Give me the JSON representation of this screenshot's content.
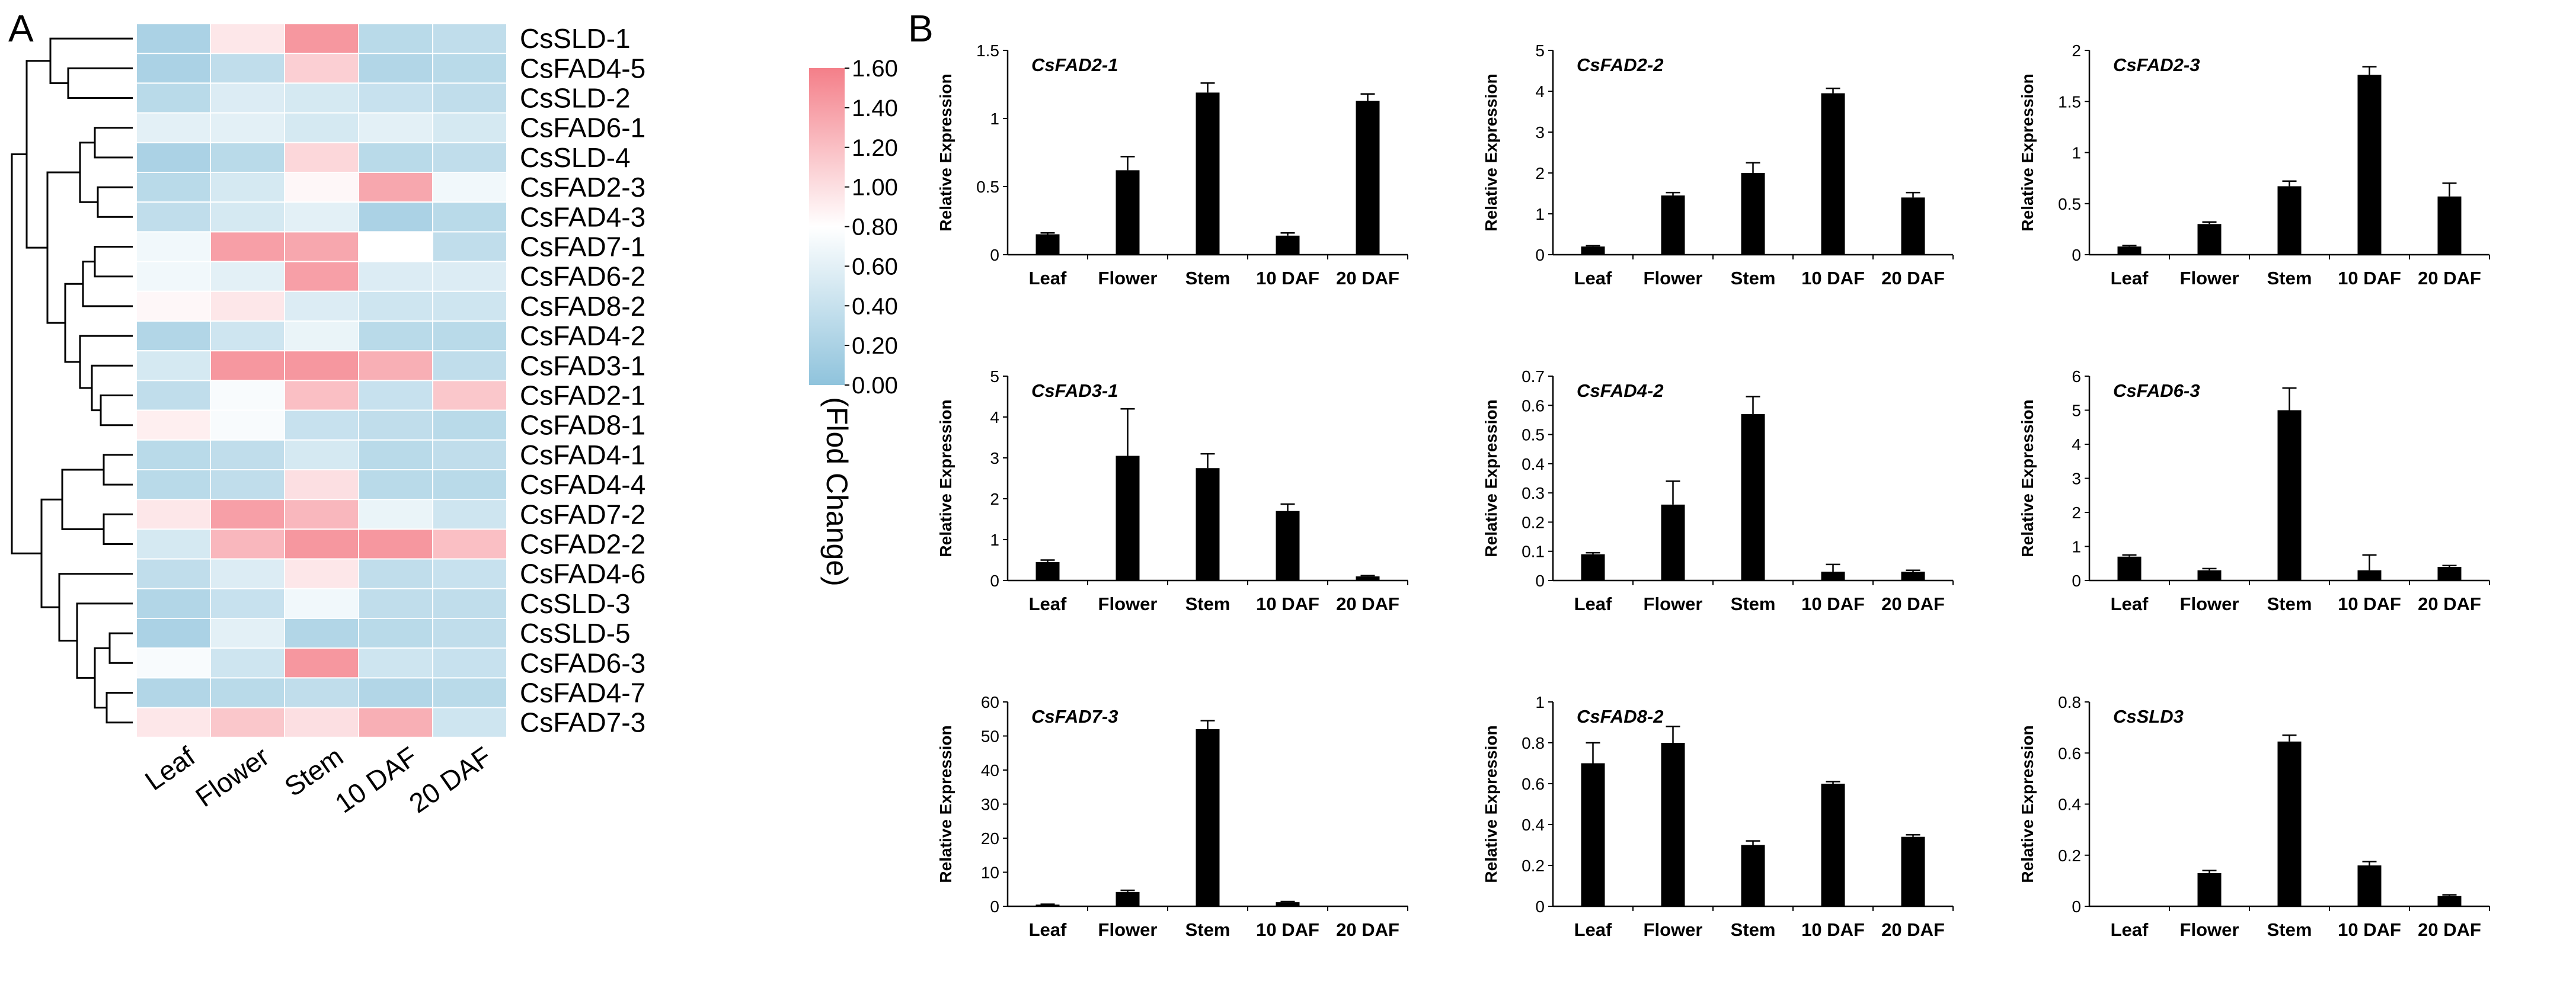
{
  "panels": {
    "a": "A",
    "b": "B"
  },
  "colors": {
    "low": "#8fc3dc",
    "mid": "#ffffff",
    "high": "#f47f89",
    "cell_border": "#ffffff",
    "bar": "#000000"
  },
  "chart_data": [
    {
      "type": "heatmap",
      "panel": "A",
      "columns": [
        "Leaf",
        "Flower",
        "Stem",
        "10 DAF",
        "20 DAF"
      ],
      "rows": [
        "CsSLD-1",
        "CsFAD4-5",
        "CsSLD-2",
        "CsFAD6-1",
        "CsSLD-4",
        "CsFAD2-3",
        "CsFAD4-3",
        "CsFAD7-1",
        "CsFAD6-2",
        "CsFAD8-2",
        "CsFAD4-2",
        "CsFAD3-1",
        "CsFAD2-1",
        "CsFAD8-1",
        "CsFAD4-1",
        "CsFAD4-4",
        "CsFAD7-2",
        "CsFAD2-2",
        "CsFAD4-6",
        "CsSLD-3",
        "CsSLD-5",
        "CsFAD6-3",
        "CsFAD4-7",
        "CsFAD7-3"
      ],
      "values": [
        [
          0.2,
          0.95,
          1.45,
          0.3,
          0.35
        ],
        [
          0.2,
          0.35,
          1.1,
          0.25,
          0.3
        ],
        [
          0.3,
          0.55,
          0.5,
          0.4,
          0.35
        ],
        [
          0.6,
          0.6,
          0.5,
          0.6,
          0.5
        ],
        [
          0.2,
          0.3,
          1.05,
          0.3,
          0.35
        ],
        [
          0.3,
          0.5,
          0.85,
          1.35,
          0.7
        ],
        [
          0.35,
          0.5,
          0.6,
          0.2,
          0.3
        ],
        [
          0.7,
          1.4,
          1.35,
          0.8,
          0.35
        ],
        [
          0.7,
          0.6,
          1.4,
          0.55,
          0.55
        ],
        [
          0.85,
          0.95,
          0.55,
          0.45,
          0.45
        ],
        [
          0.25,
          0.45,
          0.65,
          0.3,
          0.3
        ],
        [
          0.5,
          1.45,
          1.45,
          1.3,
          0.35
        ],
        [
          0.35,
          0.75,
          1.2,
          0.4,
          1.15
        ],
        [
          0.9,
          0.75,
          0.4,
          0.35,
          0.3
        ],
        [
          0.3,
          0.35,
          0.5,
          0.3,
          0.35
        ],
        [
          0.3,
          0.35,
          1.0,
          0.3,
          0.3
        ],
        [
          0.95,
          1.4,
          1.25,
          0.65,
          0.45
        ],
        [
          0.5,
          1.25,
          1.45,
          1.45,
          1.2
        ],
        [
          0.35,
          0.55,
          0.95,
          0.35,
          0.4
        ],
        [
          0.25,
          0.4,
          0.7,
          0.35,
          0.35
        ],
        [
          0.2,
          0.6,
          0.25,
          0.3,
          0.35
        ],
        [
          0.75,
          0.45,
          1.45,
          0.45,
          0.4
        ],
        [
          0.25,
          0.3,
          0.35,
          0.25,
          0.3
        ],
        [
          0.95,
          1.15,
          1.0,
          1.3,
          0.45
        ]
      ],
      "colorbar": {
        "min": 0.0,
        "max": 1.6,
        "ticks": [
          "0.00",
          "0.20",
          "0.40",
          "0.60",
          "0.80",
          "1.00",
          "1.20",
          "1.40",
          "1.60"
        ],
        "title": "(Flod Change)"
      }
    },
    {
      "type": "bar",
      "panel": "B",
      "title": "CsFAD2-1",
      "ylabel": "Relative Expression",
      "categories": [
        "Leaf",
        "Flower",
        "Stem",
        "10 DAF",
        "20 DAF"
      ],
      "values": [
        0.15,
        0.62,
        1.19,
        0.14,
        1.13
      ],
      "errors": [
        0.01,
        0.1,
        0.07,
        0.02,
        0.05
      ],
      "ylim": [
        0,
        1.5
      ],
      "yticks": [
        "0",
        "0.5",
        "1",
        "1.5"
      ]
    },
    {
      "type": "bar",
      "panel": "B",
      "title": "CsFAD2-2",
      "ylabel": "Relative Expression",
      "categories": [
        "Leaf",
        "Flower",
        "Stem",
        "10 DAF",
        "20 DAF"
      ],
      "values": [
        0.2,
        1.45,
        2.0,
        3.95,
        1.4
      ],
      "errors": [
        0.02,
        0.07,
        0.25,
        0.12,
        0.12
      ],
      "ylim": [
        0,
        5
      ],
      "yticks": [
        "0",
        "1",
        "2",
        "3",
        "4",
        "5"
      ]
    },
    {
      "type": "bar",
      "panel": "B",
      "title": "CsFAD2-3",
      "ylabel": "Relative Expression",
      "categories": [
        "Leaf",
        "Flower",
        "Stem",
        "10 DAF",
        "20 DAF"
      ],
      "values": [
        0.08,
        0.3,
        0.67,
        1.76,
        0.57
      ],
      "errors": [
        0.01,
        0.02,
        0.05,
        0.08,
        0.13
      ],
      "ylim": [
        0,
        2
      ],
      "yticks": [
        "0",
        "0.5",
        "1",
        "1.5",
        "2"
      ]
    },
    {
      "type": "bar",
      "panel": "B",
      "title": "CsFAD3-1",
      "ylabel": "Relative Expression",
      "categories": [
        "Leaf",
        "Flower",
        "Stem",
        "10 DAF",
        "20 DAF"
      ],
      "values": [
        0.45,
        3.05,
        2.75,
        1.7,
        0.1
      ],
      "errors": [
        0.05,
        1.15,
        0.35,
        0.17,
        0.02
      ],
      "ylim": [
        0,
        5
      ],
      "yticks": [
        "0",
        "1",
        "2",
        "3",
        "4",
        "5"
      ]
    },
    {
      "type": "bar",
      "panel": "B",
      "title": "CsFAD4-2",
      "ylabel": "Relative Expression",
      "categories": [
        "Leaf",
        "Flower",
        "Stem",
        "10 DAF",
        "20 DAF"
      ],
      "values": [
        0.09,
        0.26,
        0.57,
        0.03,
        0.03
      ],
      "errors": [
        0.005,
        0.08,
        0.06,
        0.025,
        0.005
      ],
      "ylim": [
        0,
        0.7
      ],
      "yticks": [
        "0",
        "0.1",
        "0.2",
        "0.3",
        "0.4",
        "0.5",
        "0.6",
        "0.7"
      ]
    },
    {
      "type": "bar",
      "panel": "B",
      "title": "CsFAD6-3",
      "ylabel": "Relative Expression",
      "categories": [
        "Leaf",
        "Flower",
        "Stem",
        "10 DAF",
        "20 DAF"
      ],
      "values": [
        0.7,
        0.3,
        5.0,
        0.3,
        0.4
      ],
      "errors": [
        0.05,
        0.05,
        0.65,
        0.45,
        0.04
      ],
      "ylim": [
        0,
        6
      ],
      "yticks": [
        "0",
        "1",
        "2",
        "3",
        "4",
        "5",
        "6"
      ]
    },
    {
      "type": "bar",
      "panel": "B",
      "title": "CsFAD7-3",
      "ylabel": "Relative Expression",
      "categories": [
        "Leaf",
        "Flower",
        "Stem",
        "10 DAF",
        "20 DAF"
      ],
      "values": [
        0.5,
        4.2,
        52.0,
        1.2,
        0.0
      ],
      "errors": [
        0.1,
        0.5,
        2.5,
        0.2,
        0.0
      ],
      "ylim": [
        0,
        60
      ],
      "yticks": [
        "0",
        "10",
        "20",
        "30",
        "40",
        "50",
        "60"
      ]
    },
    {
      "type": "bar",
      "panel": "B",
      "title": "CsFAD8-2",
      "ylabel": "Relative Expression",
      "categories": [
        "Leaf",
        "Flower",
        "Stem",
        "10 DAF",
        "20 DAF"
      ],
      "values": [
        0.7,
        0.8,
        0.3,
        0.6,
        0.34
      ],
      "errors": [
        0.1,
        0.08,
        0.02,
        0.01,
        0.01
      ],
      "ylim": [
        0,
        1
      ],
      "yticks": [
        "0",
        "0.2",
        "0.4",
        "0.6",
        "0.8",
        "1"
      ]
    },
    {
      "type": "bar",
      "panel": "B",
      "title": "CsSLD3",
      "ylabel": "Relative Expression",
      "categories": [
        "Leaf",
        "Flower",
        "Stem",
        "10 DAF",
        "20 DAF"
      ],
      "values": [
        0.0,
        0.13,
        0.645,
        0.16,
        0.04
      ],
      "errors": [
        0.0,
        0.01,
        0.025,
        0.015,
        0.005
      ],
      "ylim": [
        0,
        0.8
      ],
      "yticks": [
        "0",
        "0.2",
        "0.4",
        "0.6",
        "0.8"
      ]
    }
  ]
}
